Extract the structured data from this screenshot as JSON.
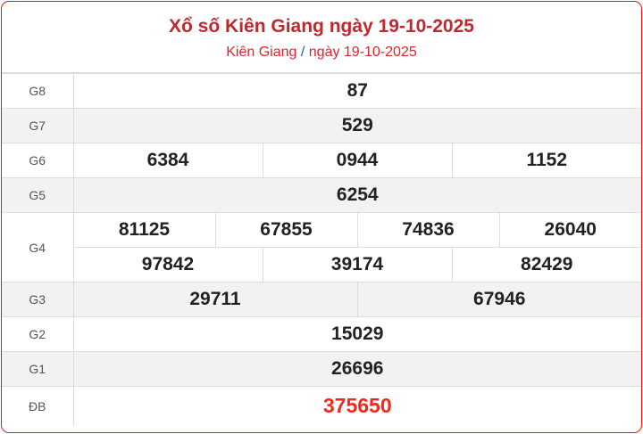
{
  "header": {
    "title": "Xổ số Kiên Giang ngày 19-10-2025",
    "breadcrumb_province": "Kiên Giang",
    "breadcrumb_sep": "/",
    "breadcrumb_date": "ngày 19-10-2025"
  },
  "prizes": {
    "g8": {
      "label": "G8",
      "values": [
        "87"
      ]
    },
    "g7": {
      "label": "G7",
      "values": [
        "529"
      ]
    },
    "g6": {
      "label": "G6",
      "values": [
        "6384",
        "0944",
        "1152"
      ]
    },
    "g5": {
      "label": "G5",
      "values": [
        "6254"
      ]
    },
    "g4": {
      "label": "G4",
      "values": [
        "81125",
        "67855",
        "74836",
        "26040",
        "97842",
        "39174",
        "82429"
      ]
    },
    "g3": {
      "label": "G3",
      "values": [
        "29711",
        "67946"
      ]
    },
    "g2": {
      "label": "G2",
      "values": [
        "15029"
      ]
    },
    "g1": {
      "label": "G1",
      "values": [
        "26696"
      ]
    },
    "db": {
      "label": "ĐB",
      "values": [
        "375650"
      ]
    }
  },
  "colors": {
    "accent": "#c0282d",
    "special": "#f0281e",
    "border": "#e0191b"
  }
}
